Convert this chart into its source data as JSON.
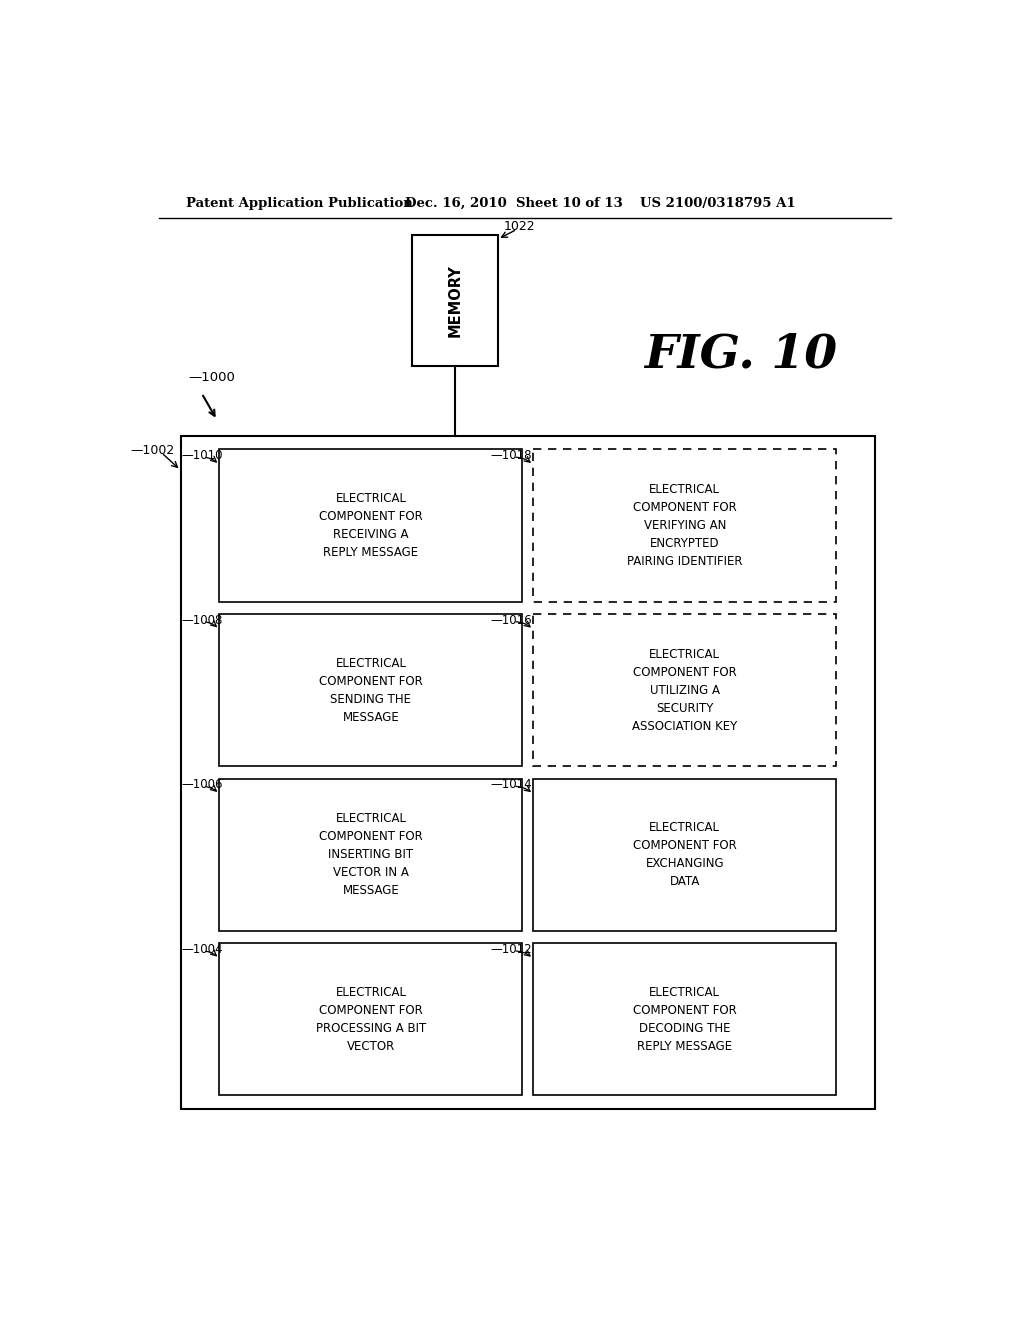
{
  "header_left": "Patent Application Publication",
  "header_mid": "Dec. 16, 2010  Sheet 10 of 13",
  "header_right": "US 2100/0318795 A1",
  "fig_label": "FIG. 10",
  "memory_label": "MEMORY",
  "memory_tag": "1022",
  "outer_figure_tag": "1000",
  "outer_box_tag": "1002",
  "left_boxes": [
    {
      "tag": "1010",
      "text": "ELECTRICAL\nCOMPONENT FOR\nRECEIVING A\nREPLY MESSAGE"
    },
    {
      "tag": "1008",
      "text": "ELECTRICAL\nCOMPONENT FOR\nSENDING THE\nMESSAGE"
    },
    {
      "tag": "1006",
      "text": "ELECTRICAL\nCOMPONENT FOR\nINSERTING BIT\nVECTOR IN A\nMESSAGE"
    },
    {
      "tag": "1004",
      "text": "ELECTRICAL\nCOMPONENT FOR\nPROCESSING A BIT\nVECTOR"
    }
  ],
  "right_boxes": [
    {
      "tag": "1018",
      "text": "ELECTRICAL\nCOMPONENT FOR\nVERIFYING AN\nENCRYPTED\nPAIRING IDENTIFIER",
      "dashed": true
    },
    {
      "tag": "1016",
      "text": "ELECTRICAL\nCOMPONENT FOR\nUTILIZING A\nSECURITY\nASSOCIATION KEY",
      "dashed": true
    },
    {
      "tag": "1014",
      "text": "ELECTRICAL\nCOMPONENT FOR\nEXCHANGING\nDATA",
      "dashed": false
    },
    {
      "tag": "1012",
      "text": "ELECTRICAL\nCOMPONENT FOR\nDECODING THE\nREPLY MESSAGE",
      "dashed": false
    }
  ]
}
